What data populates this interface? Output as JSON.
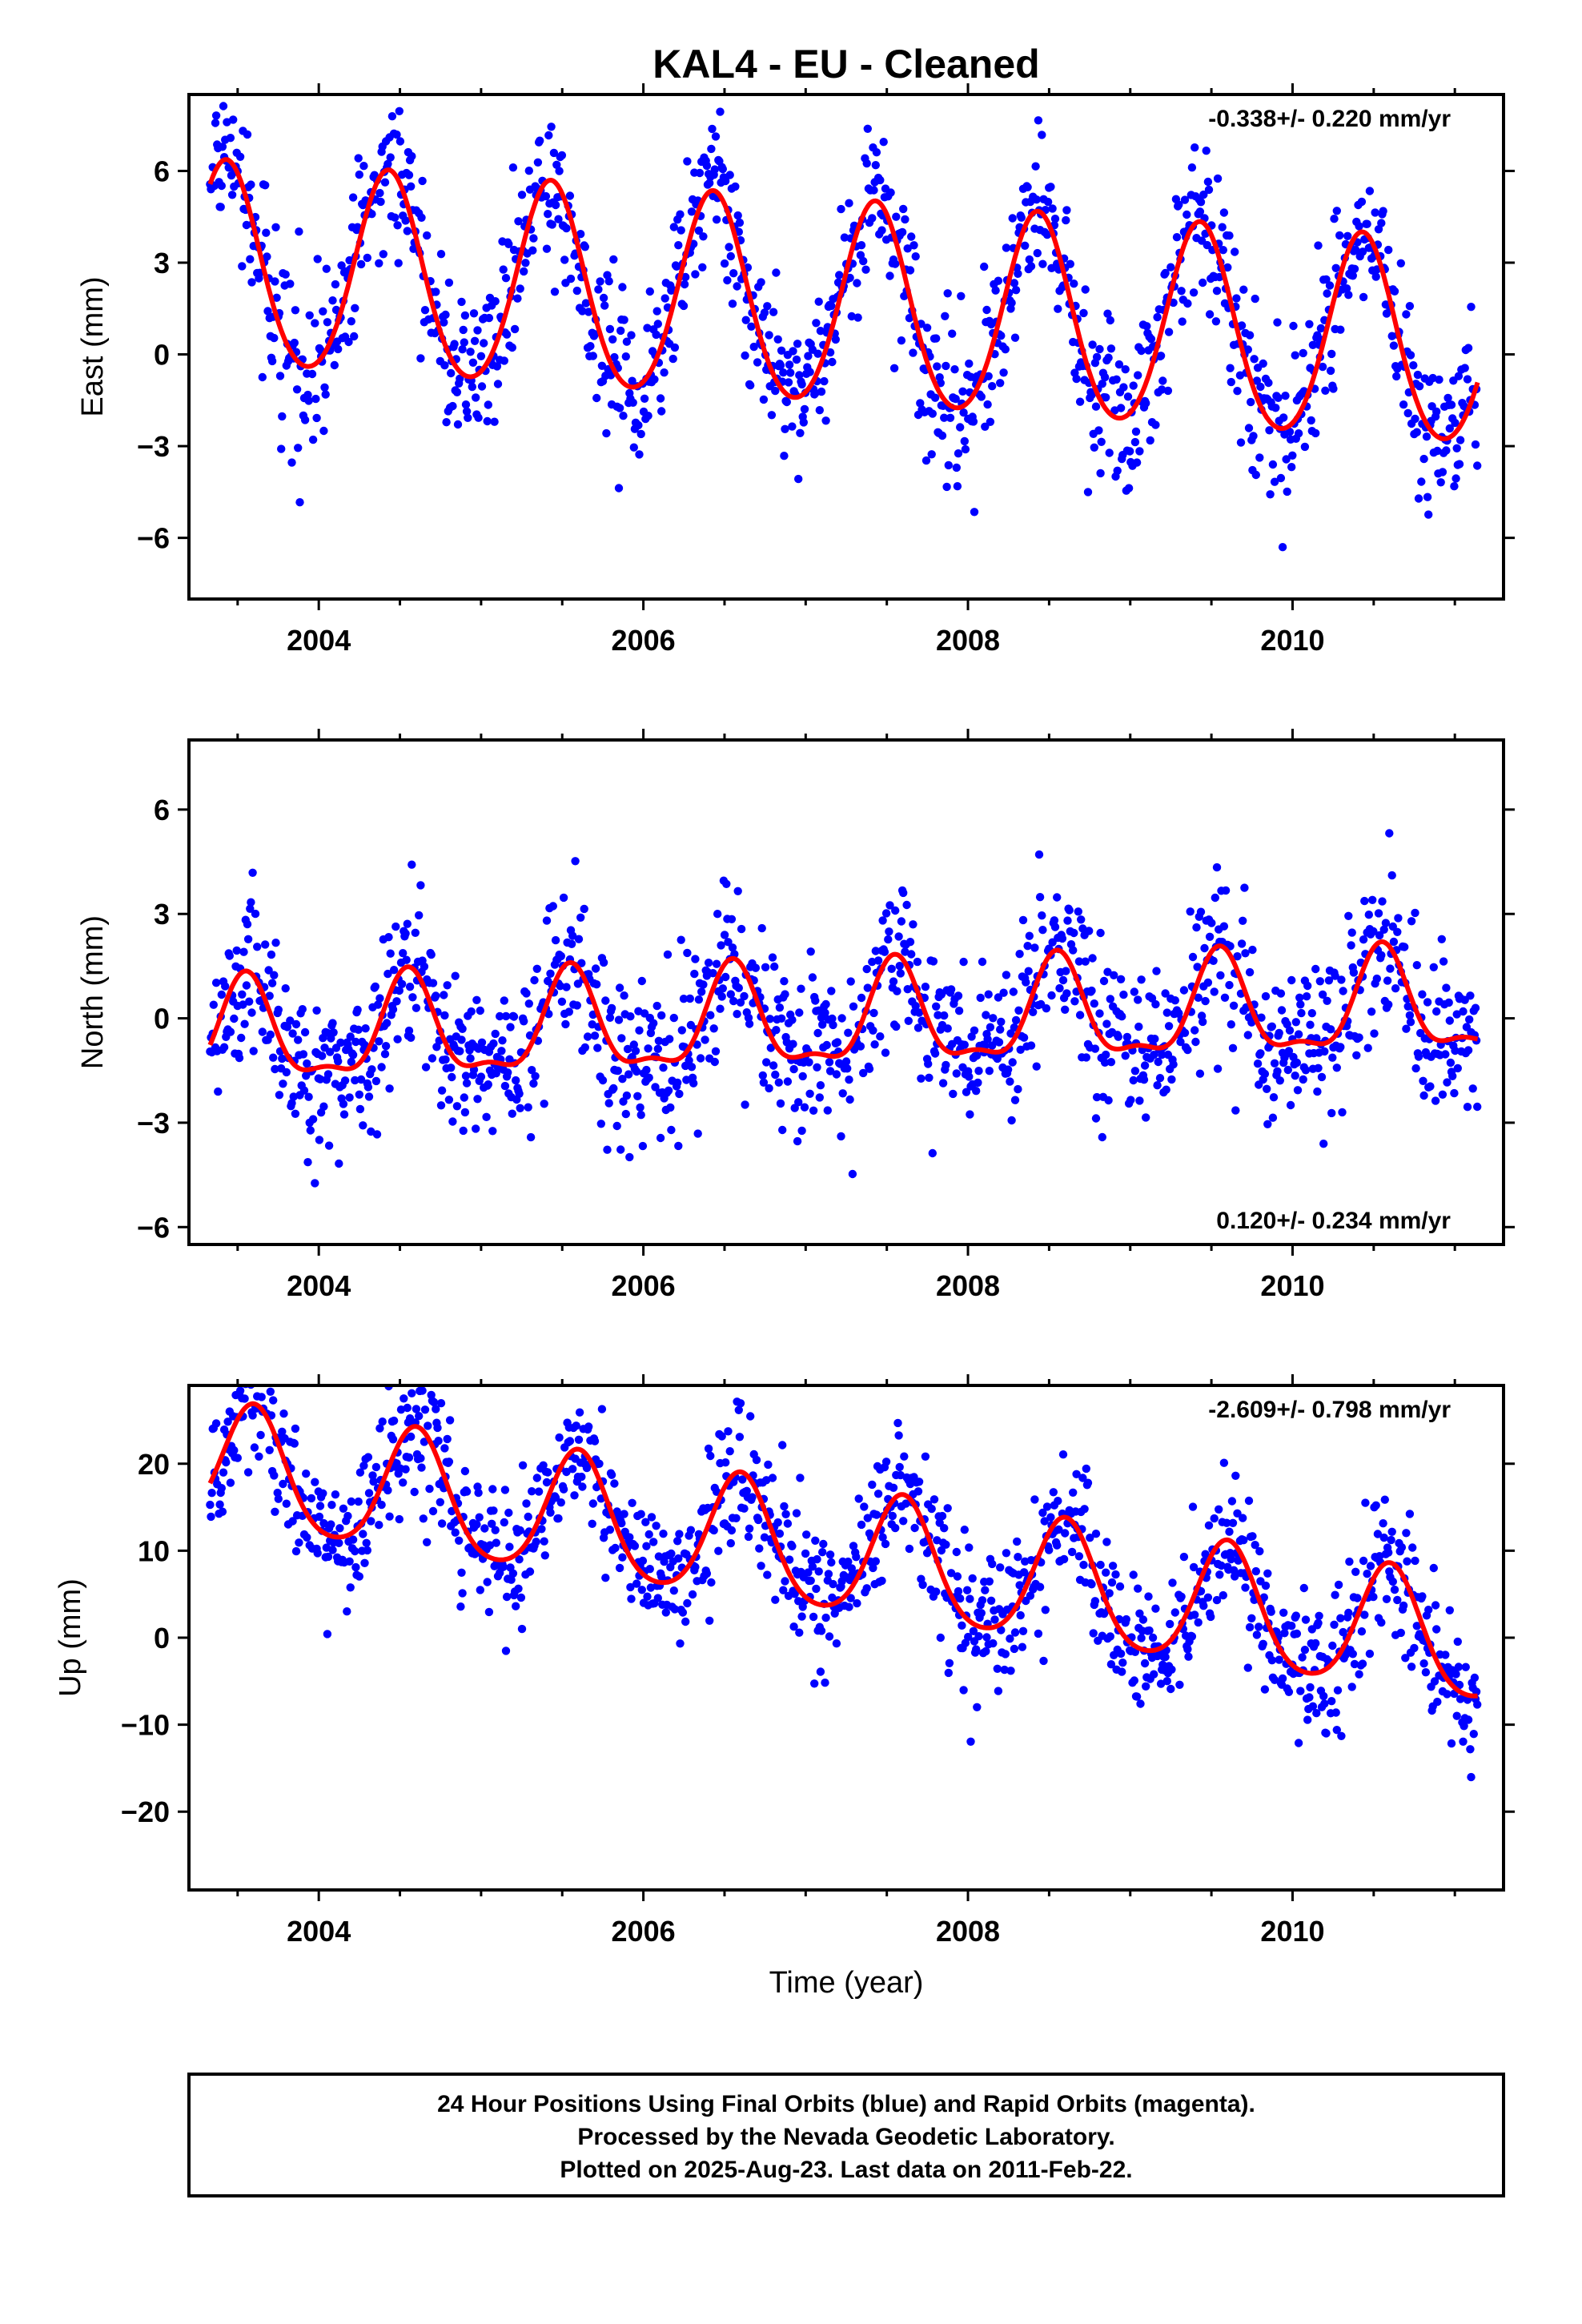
{
  "title": "KAL4  - EU - Cleaned",
  "xlabel": "Time (year)",
  "footer": {
    "line1": "24 Hour Positions Using Final Orbits (blue) and Rapid Orbits (magenta).",
    "line2": "Processed by the Nevada Geodetic Laboratory.",
    "line3": "Plotted on 2025-Aug-23. Last data on 2011-Feb-22."
  },
  "colors": {
    "points": "#0000ff",
    "fit": "#ff0000",
    "frame": "#000000"
  },
  "chart_data": [
    {
      "type": "scatter",
      "component": "east",
      "ylabel": "East (mm)",
      "rate_text": "-0.338+/- 0.220 mm/yr",
      "rate_position": "top-right",
      "xlim": [
        2003.2,
        2011.3
      ],
      "ylim": [
        -8,
        8.5
      ],
      "xticks": [
        2004,
        2006,
        2008,
        2010
      ],
      "yticks": [
        -6,
        -3,
        0,
        3,
        6
      ],
      "data_range": [
        2003.33,
        2011.14
      ],
      "model": {
        "offset": 1.5,
        "trend": -0.338,
        "annual_amp": 3.3,
        "annual_peak": 0.43,
        "semiannual_amp": 0.3,
        "noise_sd": 1.3
      },
      "series": [
        {
          "name": "24 hour positions",
          "style": "points"
        },
        {
          "name": "seasonal fit",
          "style": "line"
        }
      ]
    },
    {
      "type": "scatter",
      "component": "north",
      "ylabel": "North (mm)",
      "rate_text": "0.120+/- 0.234 mm/yr",
      "rate_position": "bottom-right",
      "xlim": [
        2003.2,
        2011.3
      ],
      "ylim": [
        -6.5,
        8
      ],
      "xticks": [
        2004,
        2006,
        2008,
        2010
      ],
      "yticks": [
        -6,
        -3,
        0,
        3,
        6
      ],
      "data_range": [
        2003.33,
        2011.14
      ],
      "model": {
        "offset": -0.1,
        "trend": 0.12,
        "annual_amp": 1.4,
        "annual_peak": 0.55,
        "semiannual_amp": 0.5,
        "noise_sd": 1.2
      },
      "series": [
        {
          "name": "24 hour positions",
          "style": "points"
        },
        {
          "name": "seasonal fit",
          "style": "line"
        }
      ]
    },
    {
      "type": "scatter",
      "component": "up",
      "ylabel": "Up (mm)",
      "rate_text": "-2.609+/- 0.798 mm/yr",
      "rate_position": "top-right",
      "xlim": [
        2003.2,
        2011.3
      ],
      "ylim": [
        -29,
        29
      ],
      "xticks": [
        2004,
        2006,
        2008,
        2010
      ],
      "yticks": [
        -20,
        -10,
        0,
        10,
        20
      ],
      "data_range": [
        2003.33,
        2011.14
      ],
      "model": {
        "offset": 9.5,
        "trend": -2.609,
        "annual_amp": 7.0,
        "annual_peak": 0.6,
        "semiannual_amp": 1.0,
        "noise_sd": 4.0
      },
      "series": [
        {
          "name": "24 hour positions",
          "style": "points"
        },
        {
          "name": "seasonal fit",
          "style": "line"
        }
      ]
    }
  ]
}
